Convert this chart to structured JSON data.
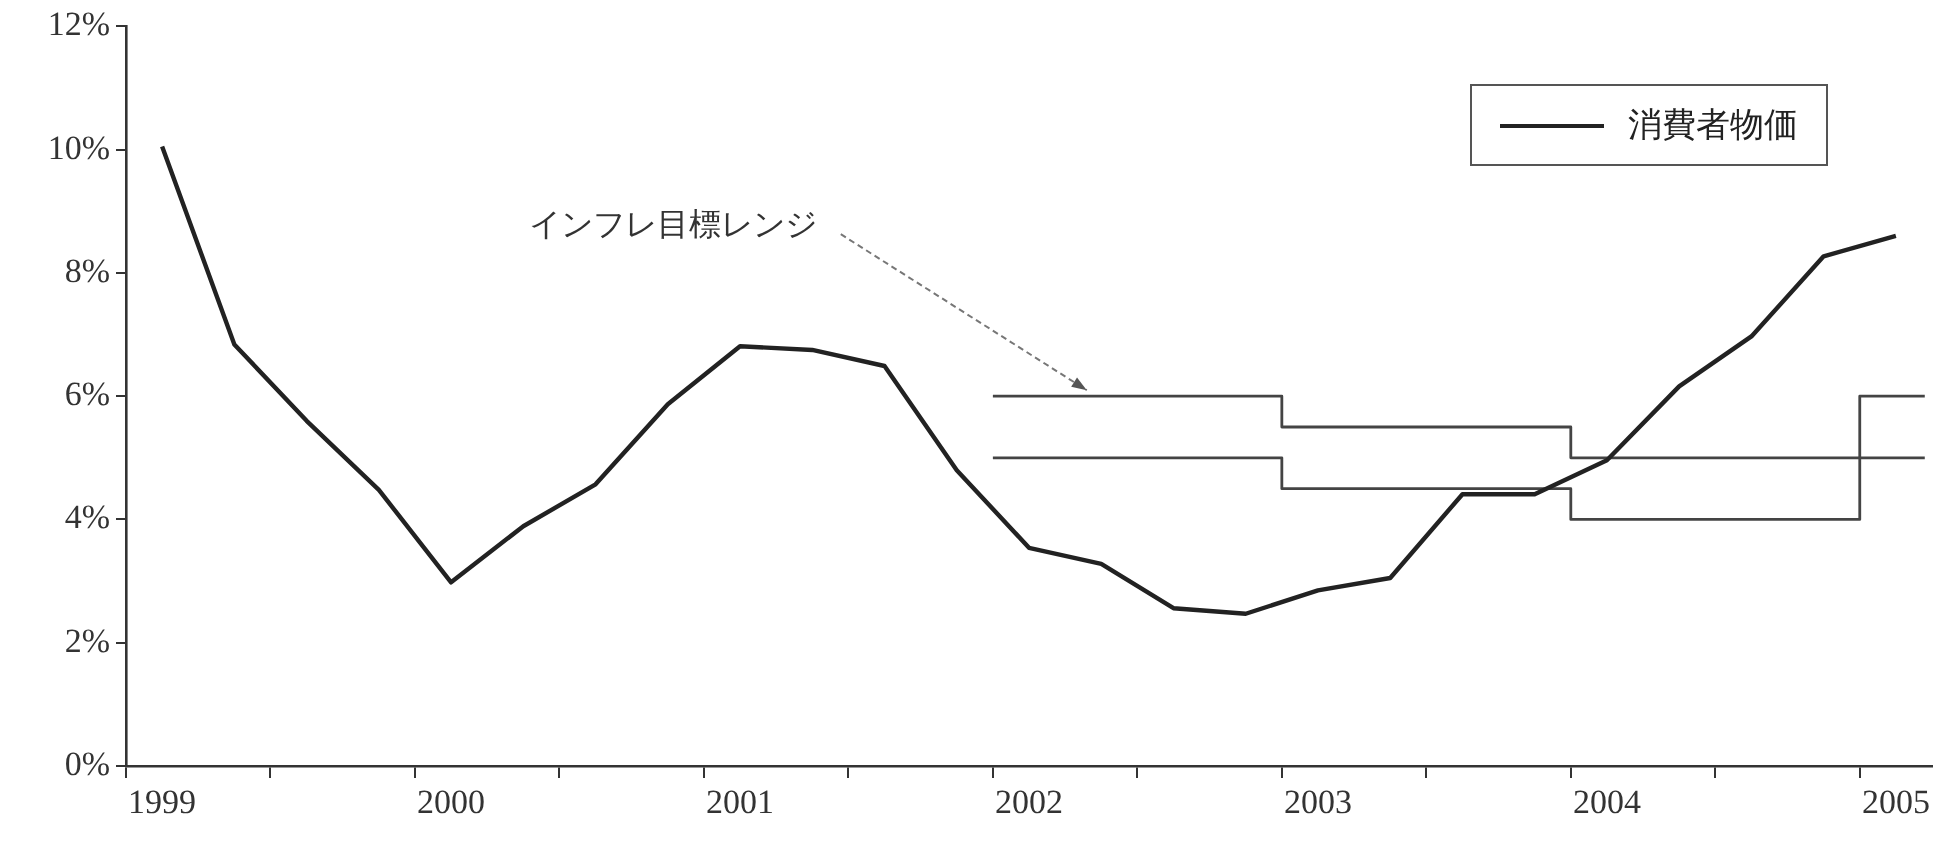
{
  "chart_data": {
    "type": "line",
    "x": [
      1999,
      1999.25,
      1999.5,
      1999.75,
      2000,
      2000.25,
      2000.5,
      2000.75,
      2001,
      2001.25,
      2001.5,
      2001.75,
      2002,
      2002.25,
      2002.5,
      2002.75,
      2003,
      2003.25,
      2003.5,
      2003.75,
      2004,
      2004.25,
      2004.5,
      2004.75,
      2005
    ],
    "series": [
      {
        "name": "消費者物価",
        "color": "#222222",
        "values": [
          10.05,
          6.84,
          5.6,
          4.48,
          2.98,
          3.89,
          4.57,
          5.87,
          6.81,
          6.75,
          6.49,
          4.8,
          3.54,
          3.28,
          2.56,
          2.47,
          2.85,
          3.05,
          4.41,
          4.41,
          4.96,
          6.16,
          6.97,
          8.27,
          8.6
        ]
      },
      {
        "type": "step",
        "color": "#444444",
        "x": [
          2001.875,
          2002.875,
          2003.875,
          2004.875,
          2005.1
        ],
        "values": [
          6,
          5.5,
          5,
          6,
          6
        ]
      },
      {
        "type": "step",
        "color": "#444444",
        "x": [
          2001.875,
          2002.875,
          2003.875,
          2004.875,
          2005.1
        ],
        "values": [
          5,
          4.5,
          4,
          5,
          5
        ]
      }
    ],
    "xlim": [
      1998.875,
      2005.125
    ],
    "xticks": [
      {
        "value": 1998.875,
        "label": null
      },
      1999,
      {
        "value": 1999.375,
        "label": null
      },
      {
        "value": 1999.875,
        "label": null
      },
      2000,
      {
        "value": 2000.375,
        "label": null
      },
      {
        "value": 2000.875,
        "label": null
      },
      2001,
      {
        "value": 2001.375,
        "label": null
      },
      {
        "value": 2001.875,
        "label": null
      },
      2002,
      {
        "value": 2002.375,
        "label": null
      },
      {
        "value": 2002.875,
        "label": null
      },
      2003,
      {
        "value": 2003.375,
        "label": null
      },
      {
        "value": 2003.875,
        "label": null
      },
      2004,
      {
        "value": 2004.375,
        "label": null
      },
      {
        "value": 2004.875,
        "label": null
      },
      2005
    ],
    "ylim": [
      0,
      12
    ],
    "yticks": [
      {
        "value": 0,
        "label": "0%"
      },
      {
        "value": 2,
        "label": "2%"
      },
      {
        "value": 4,
        "label": "4%"
      },
      {
        "value": 6,
        "label": "6%"
      },
      {
        "value": 8,
        "label": "8%"
      },
      {
        "value": 10,
        "label": "10%"
      },
      {
        "value": 12,
        "label": "12%"
      }
    ],
    "annotations": [
      {
        "text": "インフレ目標レンジ",
        "x": 2002.2,
        "y": 6
      }
    ],
    "legend": "top right",
    "grid": false,
    "marker": "none",
    "line_style": "solid"
  }
}
